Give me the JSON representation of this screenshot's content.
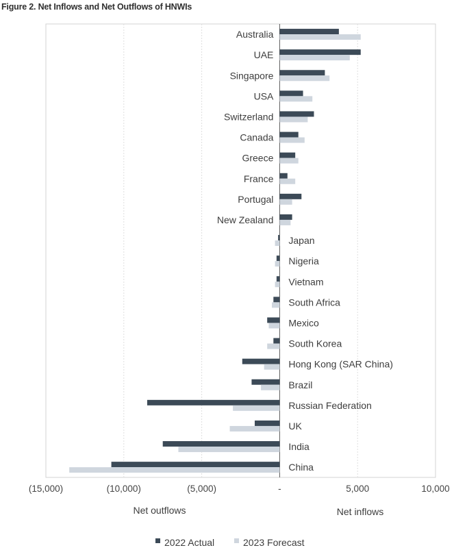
{
  "figure_title": "Figure 2. Net Inflows and Net Outflows of HNWIs",
  "chart_data": {
    "type": "bar",
    "orientation": "horizontal",
    "categories": [
      "Australia",
      "UAE",
      "Singapore",
      "USA",
      "Switzerland",
      "Canada",
      "Greece",
      "France",
      "Portugal",
      "New Zealand",
      "Japan",
      "Nigeria",
      "Vietnam",
      "South Africa",
      "Mexico",
      "South Korea",
      "Hong Kong (SAR China)",
      "Brazil",
      "Russian Federation",
      "UK",
      "India",
      "China"
    ],
    "series": [
      {
        "name": "2022 Actual",
        "color": "#3c4a57",
        "values": [
          3800,
          5200,
          2900,
          1500,
          2200,
          1200,
          1000,
          500,
          1400,
          800,
          -100,
          -200,
          -200,
          -400,
          -800,
          -400,
          -2400,
          -1800,
          -8500,
          -1600,
          -7500,
          -10800
        ]
      },
      {
        "name": "2023 Forecast",
        "color": "#cfd6de",
        "values": [
          5200,
          4500,
          3200,
          2100,
          1800,
          1600,
          1200,
          1000,
          800,
          700,
          -300,
          -300,
          -300,
          -500,
          -700,
          -800,
          -1000,
          -1200,
          -3000,
          -3200,
          -6500,
          -13500
        ]
      }
    ],
    "xlim": [
      -15000,
      10000
    ],
    "xticks": [
      -15000,
      -10000,
      -5000,
      0,
      5000,
      10000
    ],
    "xtick_labels": [
      "(15,000)",
      "(10,000)",
      "(5,000)",
      "-",
      "5,000",
      "10,000"
    ],
    "axis_annotations": {
      "left": "Net outflows",
      "right": "Net inflows"
    },
    "grid": "vertical dashed",
    "legend_position": "bottom"
  }
}
